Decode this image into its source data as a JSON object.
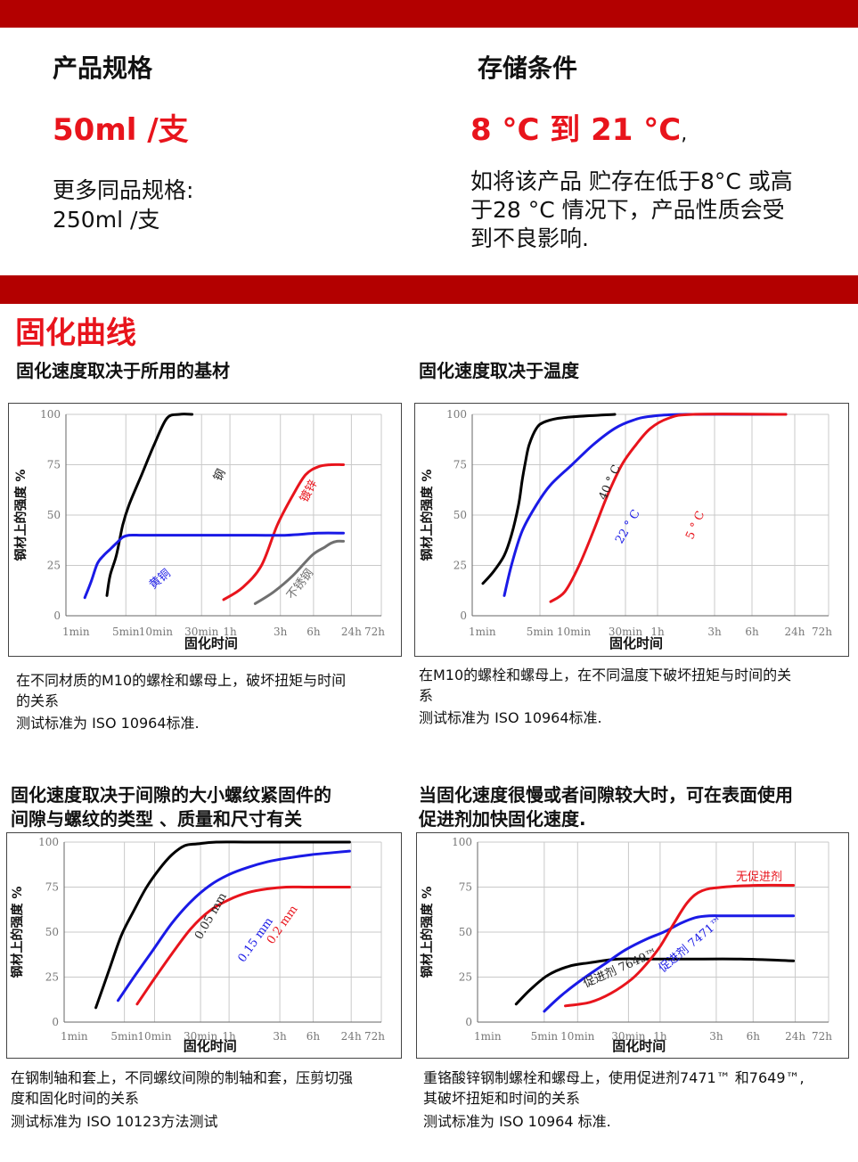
{
  "product": {
    "spec_title": "产品规格",
    "spec_value": "50ml /支",
    "more_label": "更多同品规格:",
    "more_value": "250ml /支"
  },
  "storage": {
    "title": "存储条件",
    "value": "8 °C 到 21 °C",
    "value_suffix": ",",
    "note_lines": [
      "如将该产品 贮存在低于8°C 或高",
      "于28 °C 情况下，产品性质会受",
      "到不良影响."
    ]
  },
  "section_title": "固化曲线",
  "colors": {
    "black": "#000000",
    "red": "#e8141c",
    "blue": "#1a1ae6",
    "gray": "#707070",
    "brand_bar": "#b30000"
  },
  "charts": [
    {
      "heading": [
        "固化速度取决于所用的基材"
      ],
      "caption": [
        "在不同材质的M10的螺栓和螺母上，破坏扭矩与时间",
        "的关系",
        "测试标准为 ISO 10964标准."
      ]
    },
    {
      "heading": [
        "固化速度取决于温度"
      ],
      "caption": [
        "在M10的螺栓和螺母上，在不同温度下破坏扭矩与时间的关",
        "系",
        "测试标准为 ISO 10964标准."
      ]
    },
    {
      "heading": [
        "固化速度取决于间隙的大小螺纹紧固件的",
        "间隙与螺纹的类型 、质量和尺寸有关"
      ],
      "caption": [
        "在钢制轴和套上，不同螺纹间隙的制轴和套，压剪切强",
        "度和固化时间的关系",
        "测试标准为 ISO 10123方法测试"
      ]
    },
    {
      "heading": [
        "当固化速度很慢或者间隙较大时，可在表面使用",
        "促进剂加快固化速度."
      ],
      "caption": [
        "重铬酸锌钢制螺栓和螺母上，使用促进剂7471™ 和7649™,",
        "其破坏扭矩和时间的关系",
        "测试标准为 ISO 10964 标准."
      ]
    }
  ],
  "chart_data": [
    {
      "type": "line",
      "xlabel": "固化时间",
      "ylabel": "钢材上的强度 %",
      "x_ticks": [
        "1min",
        "5min",
        "10min",
        "30min",
        "1h",
        "3h",
        "6h",
        "24h",
        "72h"
      ],
      "y_ticks": [
        0,
        25,
        50,
        75,
        100
      ],
      "ylim": [
        0,
        100
      ],
      "series": [
        {
          "name": "钢",
          "color": "black",
          "x": [
            13,
            14,
            16,
            18,
            20,
            24,
            28,
            32,
            36,
            40
          ],
          "y": [
            10,
            20,
            30,
            45,
            55,
            70,
            85,
            98,
            100,
            100
          ]
        },
        {
          "name": "镀锌",
          "color": "red",
          "x": [
            50,
            56,
            62,
            67,
            72,
            76,
            80,
            84,
            88
          ],
          "y": [
            8,
            14,
            25,
            45,
            60,
            70,
            74,
            75,
            75
          ]
        },
        {
          "name": "黄铜",
          "color": "blue",
          "x": [
            6,
            8,
            10,
            12,
            14,
            16,
            18,
            20,
            24,
            30,
            40,
            50,
            60,
            70,
            80,
            88
          ],
          "y": [
            9,
            17,
            26,
            30,
            33,
            36,
            39,
            40,
            40,
            40,
            40,
            40,
            40,
            40,
            41,
            41
          ]
        },
        {
          "name": "不锈钢",
          "color": "gray",
          "x": [
            60,
            66,
            72,
            78,
            82,
            84,
            86,
            88
          ],
          "y": [
            6,
            12,
            20,
            30,
            34,
            36,
            37,
            37
          ]
        }
      ]
    },
    {
      "type": "line",
      "xlabel": "固化时间",
      "ylabel": "钢材上的强度 %",
      "x_ticks": [
        "1min",
        "5min",
        "10min",
        "30min",
        "1h",
        "3h",
        "6h",
        "24h",
        "72h"
      ],
      "y_ticks": [
        0,
        25,
        50,
        75,
        100
      ],
      "ylim": [
        0,
        100
      ],
      "series": [
        {
          "name": "40 ° C",
          "color": "black",
          "x": [
            3,
            6,
            9,
            11,
            13,
            14,
            15,
            16,
            18,
            20,
            24,
            30,
            40
          ],
          "y": [
            16,
            22,
            30,
            40,
            55,
            67,
            77,
            85,
            93,
            96,
            98,
            99,
            100
          ]
        },
        {
          "name": "22 ° C",
          "color": "blue",
          "x": [
            9,
            11,
            14,
            18,
            22,
            28,
            34,
            40,
            45,
            50,
            60,
            88
          ],
          "y": [
            10,
            25,
            42,
            55,
            65,
            75,
            85,
            93,
            97,
            99,
            100,
            100
          ]
        },
        {
          "name": "5 ° C",
          "color": "red",
          "x": [
            22,
            26,
            30,
            34,
            38,
            42,
            46,
            50,
            55,
            62,
            88
          ],
          "y": [
            7,
            12,
            25,
            42,
            60,
            75,
            85,
            93,
            98,
            100,
            100
          ]
        }
      ]
    },
    {
      "type": "line",
      "xlabel": "固化时间",
      "ylabel": "钢材上的强度 %",
      "x_ticks": [
        "1min",
        "5min",
        "10min",
        "30min",
        "1h",
        "3h",
        "6h",
        "24h",
        "72h"
      ],
      "y_ticks": [
        0,
        25,
        50,
        75,
        100
      ],
      "ylim": [
        0,
        100
      ],
      "series": [
        {
          "name": "0.05 mm",
          "color": "black",
          "x": [
            10,
            14,
            18,
            22,
            26,
            30,
            34,
            38,
            42,
            48,
            60,
            90
          ],
          "y": [
            8,
            28,
            48,
            62,
            75,
            85,
            93,
            98,
            99,
            100,
            100,
            100
          ]
        },
        {
          "name": "0.15 mm",
          "color": "blue",
          "x": [
            17,
            22,
            28,
            34,
            40,
            46,
            52,
            58,
            64,
            70,
            78,
            90
          ],
          "y": [
            12,
            25,
            40,
            55,
            67,
            76,
            82,
            86,
            89,
            91,
            93,
            95
          ]
        },
        {
          "name": "0.2 mm",
          "color": "red",
          "x": [
            23,
            28,
            34,
            40,
            46,
            52,
            58,
            64,
            70,
            76,
            82,
            90
          ],
          "y": [
            10,
            23,
            38,
            52,
            62,
            68,
            72,
            74,
            75,
            75,
            75,
            75
          ]
        }
      ]
    },
    {
      "type": "line",
      "xlabel": "固化时间",
      "ylabel": "钢材上的强度 %",
      "x_ticks": [
        "1min",
        "5min",
        "10min",
        "30min",
        "1h",
        "3h",
        "6h",
        "24h",
        "72h"
      ],
      "y_ticks": [
        0,
        25,
        50,
        75,
        100
      ],
      "ylim": [
        0,
        100
      ],
      "series": [
        {
          "name": "促进剂 7649™",
          "color": "black",
          "x": [
            11,
            15,
            20,
            26,
            32,
            40,
            50,
            60,
            75,
            90
          ],
          "y": [
            10,
            18,
            26,
            31,
            33,
            35,
            35,
            35,
            35,
            34
          ]
        },
        {
          "name": "促进剂 7471™",
          "color": "blue",
          "x": [
            19,
            24,
            30,
            36,
            42,
            48,
            53,
            58,
            62,
            66,
            72,
            90
          ],
          "y": [
            6,
            15,
            24,
            32,
            40,
            46,
            50,
            55,
            58,
            59,
            59,
            59
          ]
        },
        {
          "name": "无促进剂",
          "color": "red",
          "x": [
            25,
            32,
            38,
            44,
            48,
            52,
            56,
            60,
            64,
            70,
            80,
            90
          ],
          "y": [
            9,
            11,
            16,
            24,
            32,
            42,
            55,
            67,
            73,
            75,
            76,
            76
          ]
        }
      ]
    }
  ]
}
